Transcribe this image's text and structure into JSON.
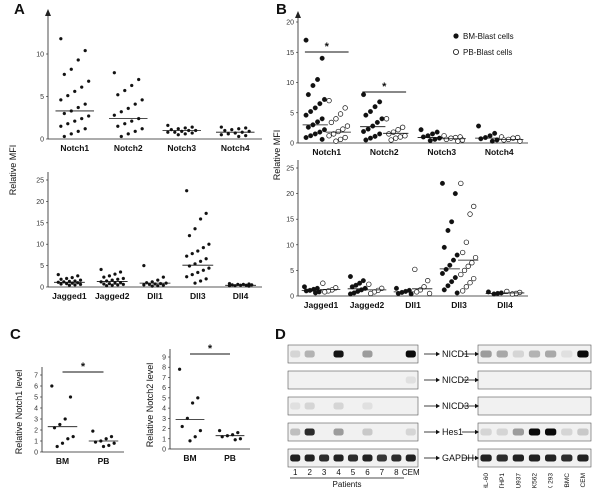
{
  "panels": {
    "a": "A",
    "b": "B",
    "c": "C",
    "d": "D"
  },
  "chart_data": [
    {
      "id": "a_top",
      "type": "scatter",
      "ylabel": "Relative MFI",
      "ylim": [
        0,
        14
      ],
      "yticks": [
        0,
        5,
        10
      ],
      "categories": [
        "Notch1",
        "Notch2",
        "Notch3",
        "Notch4"
      ],
      "series": [
        {
          "values": [
            [
              11.8,
              10.4,
              9.3,
              8.2,
              7.6,
              6.8,
              6.1,
              5.6,
              5.1,
              4.6,
              4.1,
              3.7,
              3.3,
              3.0,
              2.7,
              2.4,
              2.1,
              1.8,
              1.5,
              1.2,
              0.9,
              0.6,
              0.3
            ],
            [
              7.8,
              7.0,
              6.3,
              5.7,
              5.2,
              4.6,
              4.1,
              3.6,
              3.2,
              2.8,
              2.4,
              2.1,
              1.8,
              1.5,
              1.2,
              0.9,
              0.6,
              0.3
            ],
            [
              1.6,
              1.4,
              1.3,
              1.2,
              1.1,
              1.0,
              1.0,
              0.9,
              0.8,
              0.8,
              0.7,
              0.6,
              0.5
            ],
            [
              1.4,
              1.3,
              1.2,
              1.1,
              1.0,
              0.9,
              0.8,
              0.7,
              0.6,
              0.5,
              0.4,
              0.3
            ]
          ]
        }
      ],
      "means": [
        3.3,
        2.4,
        1.0,
        0.8
      ]
    },
    {
      "id": "a_bottom",
      "type": "scatter",
      "ylim": [
        0,
        25
      ],
      "yticks": [
        0,
        5,
        10,
        15,
        20,
        25
      ],
      "categories": [
        "Jagged1",
        "Jagged2",
        "Dll1",
        "Dll3",
        "Dll4"
      ],
      "series": [
        {
          "values": [
            [
              2.9,
              2.6,
              2.2,
              2.0,
              1.8,
              1.6,
              1.4,
              1.3,
              1.2,
              1.1,
              1.0,
              0.9,
              0.8,
              0.7,
              0.6,
              0.5,
              0.4
            ],
            [
              4.1,
              3.5,
              3.0,
              2.6,
              2.3,
              2.0,
              1.8,
              1.6,
              1.4,
              1.2,
              1.0,
              0.9,
              0.8,
              0.7,
              0.6,
              0.5,
              0.4,
              0.3
            ],
            [
              5.0,
              2.3,
              1.6,
              1.2,
              1.0,
              0.9,
              0.8,
              0.7,
              0.6,
              0.5,
              0.4,
              0.3,
              0.2
            ],
            [
              22.5,
              17.2,
              15.9,
              13.6,
              12.0,
              10.0,
              9.2,
              8.4,
              7.8,
              7.2,
              6.6,
              6.0,
              5.4,
              4.9,
              4.4,
              3.9,
              3.4,
              2.9,
              2.4,
              1.9,
              1.4,
              0.9
            ],
            [
              0.8,
              0.7,
              0.6,
              0.6,
              0.5,
              0.5,
              0.4,
              0.4,
              0.3,
              0.3,
              0.2
            ]
          ]
        }
      ],
      "means": [
        1.1,
        1.3,
        0.9,
        5.1,
        0.4
      ]
    },
    {
      "id": "b_top",
      "type": "scatter",
      "ylabel": "Relative MFI",
      "ylim": [
        0,
        20
      ],
      "yticks": [
        0,
        5,
        10,
        15,
        20
      ],
      "categories": [
        "Notch1",
        "Notch2",
        "Notch3",
        "Notch4"
      ],
      "series": [
        {
          "name": "BM-Blast cells",
          "values": [
            [
              17.0,
              14.0,
              10.5,
              9.5,
              8.0,
              7.2,
              6.5,
              5.8,
              5.2,
              4.6,
              4.0,
              3.5,
              3.0,
              2.6,
              2.2,
              1.8,
              1.5,
              1.2,
              0.9,
              0.6
            ],
            [
              8.0,
              6.8,
              6.0,
              5.2,
              4.6,
              4.0,
              3.4,
              2.8,
              2.3,
              1.9,
              1.5,
              1.1,
              0.8,
              0.5
            ],
            [
              2.2,
              1.8,
              1.5,
              1.2,
              1.0,
              0.8,
              0.6,
              0.4
            ],
            [
              2.8,
              1.6,
              1.2,
              0.9,
              0.7,
              0.5,
              0.3
            ]
          ]
        },
        {
          "name": "PB-Blast cells",
          "values": [
            [
              7.0,
              5.8,
              4.8,
              4.0,
              3.4,
              2.8,
              2.3,
              1.9,
              1.5,
              1.2,
              0.9,
              0.6,
              0.3
            ],
            [
              4.0,
              2.6,
              2.2,
              1.8,
              1.5,
              1.2,
              1.0,
              0.8,
              0.5
            ],
            [
              1.2,
              1.0,
              0.9,
              0.8,
              0.6,
              0.5,
              0.3
            ],
            [
              1.0,
              0.9,
              0.8,
              0.6,
              0.5,
              0.3
            ]
          ]
        }
      ],
      "bm_means": [
        3.0,
        2.7,
        0.9,
        0.8
      ],
      "pb_means": [
        1.8,
        1.6,
        0.7,
        0.6
      ],
      "significance": [
        {
          "category": "Notch1",
          "label": "*"
        },
        {
          "category": "Notch2",
          "label": "*"
        }
      ]
    },
    {
      "id": "b_bottom",
      "type": "scatter",
      "ylim": [
        0,
        25
      ],
      "yticks": [
        0,
        5,
        10,
        15,
        20,
        25
      ],
      "categories": [
        "Jagged1",
        "Jagged2",
        "Dll1",
        "Dll3",
        "Dll4"
      ],
      "series": [
        {
          "name": "BM-Blast cells",
          "values": [
            [
              1.8,
              1.5,
              1.3,
              1.1,
              1.0,
              0.8,
              0.6
            ],
            [
              3.8,
              3.0,
              2.5,
              2.1,
              1.8,
              1.5,
              1.2,
              0.9,
              0.6,
              0.4
            ],
            [
              1.5,
              1.1,
              0.9,
              0.7,
              0.5,
              0.4
            ],
            [
              22.0,
              20.0,
              14.5,
              12.8,
              9.5,
              8.0,
              7.0,
              6.0,
              5.2,
              4.4,
              3.6,
              2.8,
              2.0,
              1.2,
              0.6
            ],
            [
              0.8,
              0.6,
              0.5,
              0.4
            ]
          ]
        },
        {
          "name": "PB-Blast cells",
          "values": [
            [
              2.5,
              1.6,
              1.2,
              1.0,
              0.8
            ],
            [
              2.3,
              1.5,
              1.1,
              0.8,
              0.5
            ],
            [
              5.2,
              3.0,
              1.8,
              1.2,
              0.8,
              0.5
            ],
            [
              22.0,
              17.5,
              16.0,
              10.5,
              8.5,
              7.5,
              6.5,
              5.8,
              5.0,
              4.2,
              3.4,
              2.6,
              1.8,
              1.0
            ],
            [
              0.9,
              0.7,
              0.5,
              0.4
            ]
          ]
        }
      ],
      "bm_means": [
        1.1,
        1.4,
        0.8,
        5.3,
        0.5
      ],
      "pb_means": [
        1.3,
        1.2,
        1.4,
        7.0,
        0.6
      ]
    },
    {
      "id": "c_left",
      "type": "scatter",
      "ylabel": "Relative Notch1 level",
      "ylim": [
        0,
        7
      ],
      "yticks": [
        0,
        1,
        2,
        3,
        4,
        5,
        6,
        7
      ],
      "categories": [
        "BM",
        "PB"
      ],
      "series": [
        {
          "values": [
            [
              6.0,
              5.0,
              3.0,
              2.5,
              2.2,
              1.4,
              1.2,
              0.8,
              0.5
            ],
            [
              1.9,
              1.4,
              1.2,
              1.0,
              0.9,
              0.8,
              0.6,
              0.5
            ]
          ]
        }
      ],
      "means": [
        2.3,
        1.0
      ],
      "significance": [
        {
          "label": "*"
        }
      ]
    },
    {
      "id": "c_right",
      "type": "scatter",
      "ylabel": "Relative Notch2 level",
      "ylim": [
        0,
        9
      ],
      "yticks": [
        0,
        1,
        2,
        3,
        4,
        5,
        6,
        7,
        8,
        9
      ],
      "categories": [
        "BM",
        "PB"
      ],
      "series": [
        {
          "values": [
            [
              7.8,
              5.0,
              4.5,
              3.0,
              2.2,
              1.8,
              1.2,
              0.8
            ],
            [
              1.8,
              1.6,
              1.4,
              1.3,
              1.2,
              1.0,
              0.9
            ]
          ]
        }
      ],
      "means": [
        2.9,
        1.3
      ],
      "significance": [
        {
          "label": "*"
        }
      ]
    }
  ],
  "legend": {
    "bm": "BM-Blast cells",
    "pb": "PB-Blast cells"
  },
  "western": {
    "rows": [
      "NICD1",
      "NICD2",
      "NICD3",
      "Hes1",
      "GAPDH"
    ],
    "left_lanes": [
      "1",
      "2",
      "3",
      "4",
      "5",
      "6",
      "7",
      "8",
      "CEM"
    ],
    "patients_label": "Patients",
    "right_lanes": [
      "HL-60",
      "THP1",
      "U937",
      "K562",
      "HEK 293",
      "PBMC",
      "CEM"
    ],
    "left_intensity": [
      [
        0.1,
        0.25,
        0,
        0.95,
        0,
        0.35,
        0,
        0,
        1
      ],
      [
        0,
        0,
        0,
        0,
        0,
        0,
        0,
        0,
        0.05
      ],
      [
        0.05,
        0.1,
        0,
        0.1,
        0,
        0.05,
        0,
        0,
        0
      ],
      [
        0.2,
        0.85,
        0,
        0.35,
        0,
        0.15,
        0,
        0,
        0.1
      ],
      [
        0.9,
        0.9,
        0.85,
        0.9,
        0.85,
        0.9,
        0.8,
        0.85,
        0.9
      ]
    ],
    "right_intensity": [
      [
        0.35,
        0.3,
        0.1,
        0.25,
        0.3,
        0.05,
        1
      ],
      [
        0,
        0,
        0,
        0,
        0,
        0,
        0
      ],
      [
        0,
        0,
        0,
        0,
        0,
        0,
        0
      ],
      [
        0.1,
        0.1,
        0.35,
        1,
        1,
        0.1,
        0.15
      ],
      [
        0.9,
        0.85,
        0.9,
        0.9,
        0.9,
        0.85,
        0.9
      ]
    ]
  }
}
